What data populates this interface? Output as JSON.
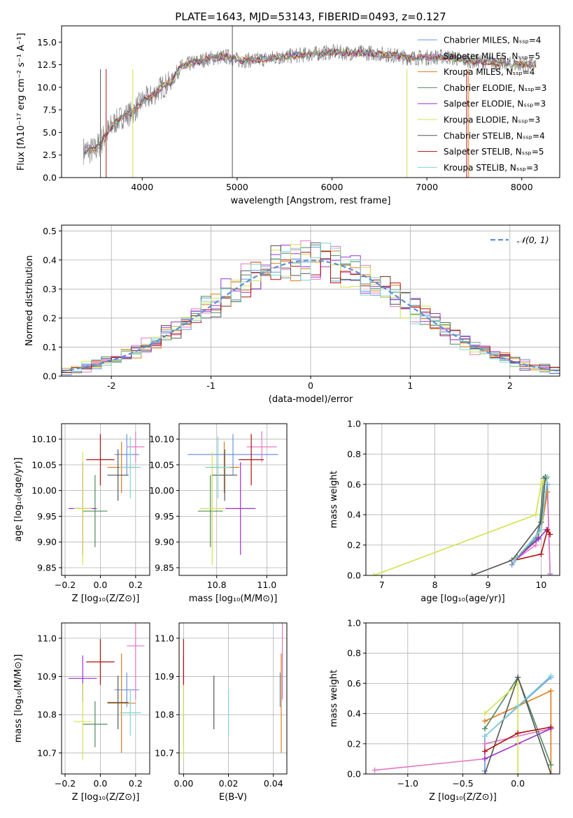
{
  "colors": {
    "chabrier_miles": "#6a93e0",
    "salpeter_miles": "#e377c2",
    "kroupa_miles": "#e07b17",
    "chabrier_elodie": "#4e8a5e",
    "salpeter_elodie": "#9b30d0",
    "kroupa_elodie": "#d4e04c",
    "chabrier_stelib": "#555555",
    "salpeter_stelib": "#b01010",
    "kroupa_stelib": "#7fd4d4",
    "normal": "#5b8ed6"
  },
  "chart_data": [
    {
      "id": "spectrum",
      "type": "line",
      "title": "PLATE=1643, MJD=53143, FIBERID=0493, z=0.127",
      "xlabel": "wavelength [Angstrom, rest frame]",
      "ylabel": "Flux [fλ10⁻¹⁷ erg cm⁻² s⁻¹ A⁻¹]",
      "xlim": [
        3150,
        8400
      ],
      "ylim": [
        0,
        16.8
      ],
      "xticks": [
        4000,
        5000,
        6000,
        7000,
        8000
      ],
      "yticks": [
        0.0,
        2.5,
        5.0,
        7.5,
        10.0,
        12.5,
        15.0
      ],
      "grid": false,
      "legend_position": "right",
      "continuum": [
        [
          3380,
          3.0
        ],
        [
          3500,
          3.0
        ],
        [
          3600,
          4.5
        ],
        [
          3700,
          6.0
        ],
        [
          3800,
          6.8
        ],
        [
          3900,
          7.2
        ],
        [
          4000,
          8.5
        ],
        [
          4100,
          9.0
        ],
        [
          4200,
          10.0
        ],
        [
          4300,
          10.5
        ],
        [
          4400,
          12.2
        ],
        [
          4500,
          12.6
        ],
        [
          4700,
          13.2
        ],
        [
          4900,
          13.4
        ],
        [
          5000,
          13.0
        ],
        [
          5200,
          13.0
        ],
        [
          5400,
          13.3
        ],
        [
          5600,
          13.5
        ],
        [
          5800,
          13.7
        ],
        [
          6000,
          13.9
        ],
        [
          6200,
          13.8
        ],
        [
          6400,
          13.8
        ],
        [
          6600,
          13.6
        ],
        [
          6800,
          13.3
        ],
        [
          7000,
          13.3
        ],
        [
          7200,
          13.4
        ],
        [
          7400,
          13.0
        ],
        [
          7600,
          12.8
        ],
        [
          7800,
          12.6
        ],
        [
          8000,
          12.5
        ],
        [
          8150,
          12.5
        ]
      ],
      "legend": [
        {
          "label": "Chabrier MILES, Nₛₛₚ=4",
          "color": "chabrier_miles"
        },
        {
          "label": "Salpeter MILES, Nₛₛₚ=5",
          "color": "salpeter_miles"
        },
        {
          "label": "Kroupa MILES, Nₛₛₚ=4",
          "color": "kroupa_miles"
        },
        {
          "label": "Chabrier ELODIE, Nₛₛₚ=3",
          "color": "chabrier_elodie"
        },
        {
          "label": "Salpeter ELODIE, Nₛₛₚ=3",
          "color": "salpeter_elodie"
        },
        {
          "label": "Kroupa ELODIE, Nₛₛₚ=3",
          "color": "kroupa_elodie"
        },
        {
          "label": "Chabrier STELIB, Nₛₛₚ=4",
          "color": "chabrier_stelib"
        },
        {
          "label": "Salpeter STELIB, Nₛₛₚ=5",
          "color": "salpeter_stelib"
        },
        {
          "label": "Kroupa STELIB, Nₛₛₚ=3",
          "color": "kroupa_stelib"
        }
      ]
    },
    {
      "id": "residuals",
      "type": "line",
      "xlabel": "(data-model)/error",
      "ylabel": "Normed distribution",
      "xlim": [
        -2.5,
        2.5
      ],
      "ylim": [
        0,
        0.52
      ],
      "xticks": [
        -2,
        -1,
        0,
        1,
        2
      ],
      "yticks": [
        0.0,
        0.1,
        0.2,
        0.3,
        0.4,
        0.5
      ],
      "grid": true,
      "legend_position": "top-right",
      "legend_label": "𝒩(0, 1)",
      "bin_width": 0.1
    },
    {
      "id": "age_vs_z",
      "type": "scatter",
      "xlabel": "Z [log₁₀(Z/Z⊙)]",
      "ylabel": "age  [log₁₀(age/yr)]",
      "xlim": [
        -0.22,
        0.28
      ],
      "ylim": [
        9.835,
        10.13
      ],
      "xticks": [
        -0.2,
        0.0,
        0.2
      ],
      "xtick_labels": [
        "−0.2",
        "0.0",
        "0.2"
      ],
      "yticks": [
        9.85,
        9.9,
        9.95,
        10.0,
        10.05,
        10.1
      ],
      "ytick_labels": [
        "9.85",
        "9.90",
        "9.95",
        "10.00",
        "10.05",
        "10.10"
      ],
      "grid": true
    },
    {
      "id": "age_vs_mass",
      "type": "scatter",
      "xlabel": "mass [log₁₀(M/M⊙)]",
      "xlim": [
        10.65,
        11.08
      ],
      "ylim": [
        9.835,
        10.13
      ],
      "xticks": [
        10.8,
        11.0
      ],
      "xtick_labels": [
        "10.8",
        "11.0"
      ],
      "yticks": [
        9.85,
        9.9,
        9.95,
        10.0,
        10.05,
        10.1
      ],
      "ytick_labels": [
        "9.85",
        "9.90",
        "9.95",
        "10.00",
        "10.05",
        "10.10"
      ],
      "grid": true
    },
    {
      "id": "weight_vs_age",
      "type": "line",
      "xlabel": "age  [log₁₀(age/yr)]",
      "ylabel": "mass weight",
      "xlim": [
        6.7,
        10.35
      ],
      "ylim": [
        0,
        1.0
      ],
      "xticks": [
        7,
        8,
        9,
        10
      ],
      "yticks": [
        0.0,
        0.2,
        0.4,
        0.6,
        0.8,
        1.0
      ],
      "grid": true
    },
    {
      "id": "mass_vs_z",
      "type": "scatter",
      "xlabel": "Z [log₁₀(Z/Z⊙)]",
      "ylabel": "mass [log₁₀(M/M⊙)]",
      "xlim": [
        -0.22,
        0.28
      ],
      "ylim": [
        10.645,
        11.04
      ],
      "xticks": [
        -0.2,
        0.0,
        0.2
      ],
      "xtick_labels": [
        "−0.2",
        "0.0",
        "0.2"
      ],
      "yticks": [
        10.7,
        10.8,
        10.9,
        11.0
      ],
      "ytick_labels": [
        "10.7",
        "10.8",
        "10.9",
        "11.0"
      ],
      "grid": true
    },
    {
      "id": "mass_vs_ebv",
      "type": "scatter",
      "xlabel": "E(B-V)",
      "xlim": [
        -0.002,
        0.046
      ],
      "ylim": [
        10.645,
        11.04
      ],
      "xticks": [
        0.0,
        0.02,
        0.04
      ],
      "xtick_labels": [
        "0.00",
        "0.02",
        "0.04"
      ],
      "yticks": [
        10.7,
        10.8,
        10.9,
        11.0
      ],
      "ytick_labels": [
        "10.7",
        "10.8",
        "10.9",
        "11.0"
      ],
      "grid": true
    },
    {
      "id": "weight_vs_z",
      "type": "line",
      "xlabel": "Z [log₁₀(Z/Z⊙)]",
      "ylabel": "mass weight",
      "xlim": [
        -1.38,
        0.38
      ],
      "ylim": [
        0,
        1.0
      ],
      "xticks": [
        -1.0,
        -0.5,
        0.0
      ],
      "xtick_labels": [
        "−1.0",
        "−0.5",
        "0.0"
      ],
      "yticks": [
        0.0,
        0.2,
        0.4,
        0.6,
        0.8,
        1.0
      ],
      "grid": true
    }
  ],
  "fits": [
    {
      "color": "chabrier_miles",
      "Z": 0.15,
      "Zerr": 0.07,
      "age": 10.07,
      "ageErr": 0.04,
      "mass": 10.865,
      "massErr": 0.18,
      "mErr2": 0.045,
      "ebv": 0.043,
      "mw_age": [
        [
          9.45,
          0.07
        ],
        [
          9.9,
          0.25
        ],
        [
          10.02,
          0.4
        ],
        [
          10.12,
          0.6
        ],
        [
          10.17,
          0.01
        ]
      ],
      "mw_z": [
        [
          -0.3,
          0.02
        ],
        [
          -0.3,
          0.25
        ],
        [
          0.3,
          0.64
        ]
      ]
    },
    {
      "color": "salpeter_miles",
      "Z": 0.2,
      "Zerr": 0.05,
      "age": 10.085,
      "ageErr": 0.03,
      "mass": 10.98,
      "massErr": 0.06,
      "mErr2": 0.14,
      "ebv": 0.044,
      "mw_age": [
        [
          9.5,
          0.1
        ],
        [
          9.9,
          0.2
        ],
        [
          10.12,
          0.55
        ],
        [
          10.17,
          0.0
        ]
      ],
      "mw_z": [
        [
          -1.3,
          0.025
        ],
        [
          -0.3,
          0.1
        ],
        [
          -0.3,
          0.2
        ],
        [
          0.3,
          0.3
        ]
      ]
    },
    {
      "color": "kroupa_miles",
      "Z": 0.12,
      "Zerr": 0.08,
      "age": 10.045,
      "ageErr": 0.05,
      "mass": 10.83,
      "massErr": 0.06,
      "mErr2": 0.13,
      "ebv": 0.0435,
      "mw_age": [
        [
          9.5,
          0.1
        ],
        [
          10.0,
          0.3
        ],
        [
          10.12,
          0.55
        ]
      ],
      "mw_z": [
        [
          -0.3,
          0.35
        ],
        [
          0.3,
          0.55
        ],
        [
          0.3,
          0.0
        ]
      ]
    },
    {
      "color": "chabrier_elodie",
      "Z": -0.03,
      "Zerr": 0.07,
      "age": 9.96,
      "ageErr": 0.07,
      "mass": 10.775,
      "massErr": 0.05,
      "mErr2": 0.06,
      "ebv": 0.0,
      "mw_age": [
        [
          9.55,
          0.12
        ],
        [
          9.95,
          0.25
        ],
        [
          10.05,
          0.64
        ],
        [
          10.1,
          0.64
        ]
      ],
      "mw_z": [
        [
          -0.3,
          0.3
        ],
        [
          0.0,
          0.64
        ],
        [
          0.3,
          0.06
        ]
      ]
    },
    {
      "color": "salpeter_elodie",
      "Z": -0.1,
      "Zerr": 0.08,
      "age": 9.965,
      "ageErr": 0.09,
      "mass": 10.895,
      "massErr": 0.06,
      "mErr2": 0.06,
      "ebv": 0.0,
      "mw_age": [
        [
          9.5,
          0.1
        ],
        [
          9.95,
          0.24
        ],
        [
          10.1,
          0.3
        ]
      ],
      "mw_z": [
        [
          -0.3,
          0.1
        ],
        [
          0.0,
          0.2
        ],
        [
          0.3,
          0.3
        ]
      ]
    },
    {
      "color": "kroupa_elodie",
      "Z": -0.1,
      "Zerr": 0.05,
      "age": 9.965,
      "ageErr": 0.11,
      "mass": 10.782,
      "massErr": 0.05,
      "mErr2": 0.1,
      "ebv": 0.0,
      "mw_age": [
        [
          6.85,
          0.0
        ],
        [
          9.9,
          0.4
        ],
        [
          10.0,
          0.6
        ],
        [
          10.05,
          0.62
        ]
      ],
      "mw_z": [
        [
          -0.3,
          0.4
        ],
        [
          0.0,
          0.6
        ],
        [
          0.0,
          0.0
        ]
      ]
    },
    {
      "color": "chabrier_stelib",
      "Z": 0.1,
      "Zerr": 0.06,
      "age": 10.03,
      "ageErr": 0.05,
      "mass": 10.832,
      "massErr": 0.05,
      "mErr2": 0.07,
      "ebv": 0.0135,
      "mw_age": [
        [
          8.7,
          0.0
        ],
        [
          9.45,
          0.1
        ],
        [
          10.0,
          0.35
        ],
        [
          10.08,
          0.65
        ]
      ],
      "mw_z": [
        [
          -0.3,
          0.0
        ],
        [
          0.0,
          0.64
        ],
        [
          0.3,
          0.0
        ]
      ]
    },
    {
      "color": "salpeter_stelib",
      "Z": 0.0,
      "Zerr": 0.08,
      "age": 10.06,
      "ageErr": 0.05,
      "mass": 10.938,
      "massErr": 0.05,
      "mErr2": 0.06,
      "ebv": 0.0,
      "mw_age": [
        [
          9.5,
          0.1
        ],
        [
          10.0,
          0.14
        ],
        [
          10.12,
          0.3
        ],
        [
          10.17,
          0.27
        ]
      ],
      "mw_z": [
        [
          -0.3,
          0.15
        ],
        [
          0.0,
          0.27
        ],
        [
          0.3,
          0.31
        ]
      ]
    },
    {
      "color": "kroupa_stelib",
      "Z": 0.17,
      "Zerr": 0.06,
      "age": 10.045,
      "ageErr": 0.06,
      "mass": 10.805,
      "massErr": 0.05,
      "mErr2": 0.06,
      "ebv": 0.02,
      "mw_age": [
        [
          9.5,
          0.1
        ],
        [
          10.0,
          0.3
        ],
        [
          10.12,
          0.65
        ]
      ],
      "mw_z": [
        [
          -0.3,
          0.25
        ],
        [
          0.0,
          0.45
        ],
        [
          0.3,
          0.65
        ]
      ]
    }
  ]
}
